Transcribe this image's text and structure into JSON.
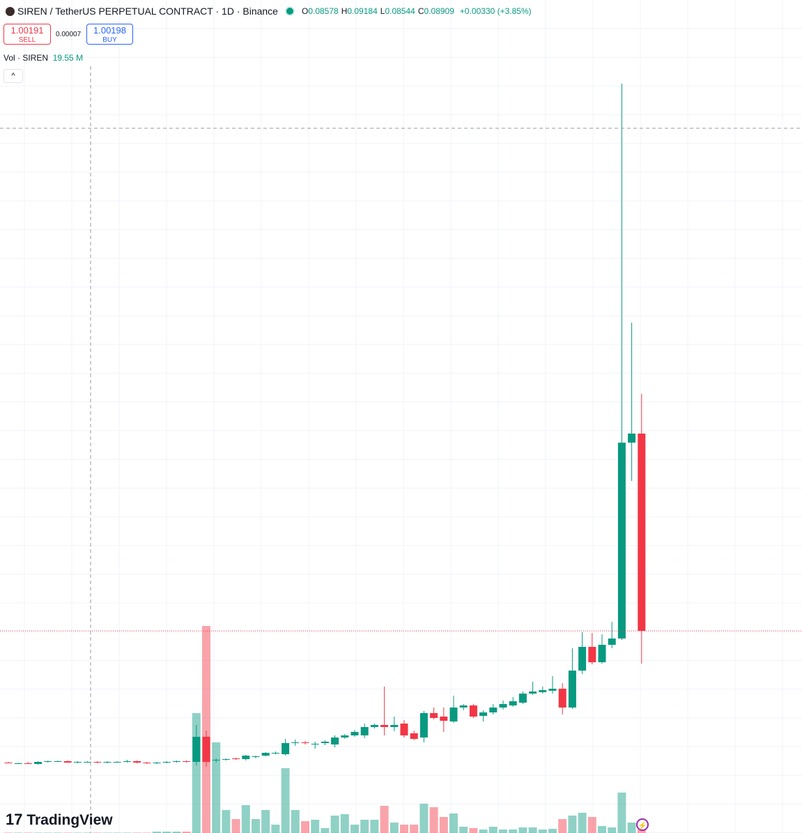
{
  "header": {
    "symbol": "SIREN / TetherUS PERPETUAL CONTRACT · 1D · Binance",
    "ohlc": [
      {
        "label": "O",
        "value": "0.08578"
      },
      {
        "label": "H",
        "value": "0.09184"
      },
      {
        "label": "L",
        "value": "0.08544"
      },
      {
        "label": "C",
        "value": "0.08909"
      }
    ],
    "change": "+0.00330 (+3.85%)"
  },
  "trade": {
    "sell_price": "1.00191",
    "sell_label": "SELL",
    "spread": "0.00007",
    "buy_price": "1.00198",
    "buy_label": "BUY"
  },
  "volume_legend": {
    "label": "Vol · SIREN",
    "value": "19.55 M"
  },
  "brand": "TradingView",
  "chart_data": {
    "type": "candlestick",
    "up_color": "#089981",
    "down_color": "#f23645",
    "ylim": [
      0,
      1.195
    ],
    "volume_lim": [
      0,
      47800
    ],
    "open": [
      0.101,
      0.1,
      0.1,
      0.099,
      0.102,
      0.103,
      0.103,
      0.101,
      0.102,
      0.102,
      0.101,
      0.102,
      0.102,
      0.103,
      0.101,
      0.1,
      0.101,
      0.102,
      0.103,
      0.102,
      0.138,
      0.104,
      0.105,
      0.107,
      0.106,
      0.109,
      0.111,
      0.114,
      0.113,
      0.129,
      0.13,
      0.127,
      0.129,
      0.127,
      0.137,
      0.14,
      0.14,
      0.152,
      0.155,
      0.152,
      0.157,
      0.143,
      0.137,
      0.172,
      0.167,
      0.16,
      0.18,
      0.183,
      0.168,
      0.173,
      0.18,
      0.183,
      0.187,
      0.2,
      0.202,
      0.204,
      0.207,
      0.18,
      0.233,
      0.267,
      0.245,
      0.27,
      0.279,
      0.56,
      0.573
    ],
    "high": [
      0.102,
      0.101,
      0.102,
      0.103,
      0.104,
      0.104,
      0.104,
      0.103,
      0.103,
      0.103,
      0.103,
      0.103,
      0.105,
      0.104,
      0.102,
      0.102,
      0.103,
      0.104,
      0.104,
      0.155,
      0.147,
      0.107,
      0.107,
      0.108,
      0.112,
      0.111,
      0.116,
      0.117,
      0.135,
      0.134,
      0.132,
      0.131,
      0.133,
      0.14,
      0.142,
      0.148,
      0.157,
      0.157,
      0.21,
      0.167,
      0.162,
      0.147,
      0.175,
      0.18,
      0.18,
      0.197,
      0.185,
      0.185,
      0.176,
      0.185,
      0.19,
      0.195,
      0.203,
      0.217,
      0.21,
      0.225,
      0.215,
      0.265,
      0.288,
      0.287,
      0.285,
      0.303,
      1.075,
      0.732,
      0.63
    ],
    "low": [
      0.1,
      0.099,
      0.099,
      0.098,
      0.101,
      0.102,
      0.101,
      0.1,
      0.101,
      0.1,
      0.1,
      0.101,
      0.101,
      0.1,
      0.099,
      0.099,
      0.1,
      0.101,
      0.101,
      0.097,
      0.095,
      0.101,
      0.104,
      0.105,
      0.104,
      0.107,
      0.11,
      0.113,
      0.111,
      0.125,
      0.127,
      0.121,
      0.126,
      0.123,
      0.135,
      0.138,
      0.136,
      0.15,
      0.14,
      0.146,
      0.137,
      0.133,
      0.13,
      0.163,
      0.145,
      0.158,
      0.176,
      0.165,
      0.16,
      0.17,
      0.177,
      0.181,
      0.185,
      0.198,
      0.2,
      0.2,
      0.17,
      0.178,
      0.228,
      0.242,
      0.243,
      0.265,
      0.277,
      0.505,
      0.243
    ],
    "close": [
      0.1,
      0.1,
      0.099,
      0.102,
      0.103,
      0.103,
      0.101,
      0.102,
      0.102,
      0.101,
      0.102,
      0.102,
      0.103,
      0.101,
      0.1,
      0.101,
      0.102,
      0.103,
      0.102,
      0.138,
      0.102,
      0.105,
      0.106,
      0.106,
      0.111,
      0.11,
      0.115,
      0.115,
      0.129,
      0.13,
      0.129,
      0.128,
      0.131,
      0.137,
      0.14,
      0.145,
      0.152,
      0.155,
      0.152,
      0.155,
      0.14,
      0.135,
      0.172,
      0.165,
      0.161,
      0.18,
      0.183,
      0.167,
      0.173,
      0.18,
      0.185,
      0.189,
      0.2,
      0.203,
      0.205,
      0.207,
      0.18,
      0.233,
      0.267,
      0.245,
      0.27,
      0.279,
      0.56,
      0.573,
      0.29
    ],
    "volume": [
      20,
      20,
      20,
      20,
      20,
      20,
      20,
      20,
      20,
      19.55,
      20,
      20,
      20,
      20,
      20,
      80,
      80,
      80,
      80,
      6880,
      11880,
      5200,
      1320,
      800,
      1600,
      800,
      1320,
      480,
      3720,
      1320,
      680,
      760,
      280,
      1000,
      1080,
      480,
      760,
      760,
      1560,
      600,
      480,
      480,
      1680,
      1480,
      920,
      1120,
      360,
      280,
      200,
      360,
      200,
      200,
      320,
      320,
      200,
      240,
      800,
      1000,
      1160,
      920,
      400,
      320,
      2320,
      600,
      200
    ]
  }
}
